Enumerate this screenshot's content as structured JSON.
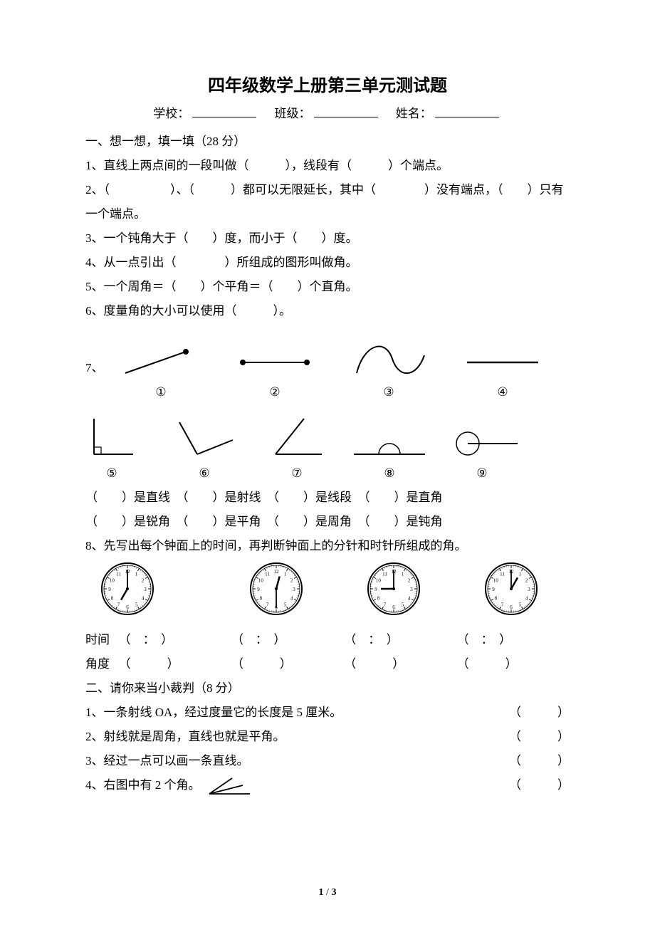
{
  "title": "四年级数学上册第三单元测试题",
  "header": {
    "school_label": "学校：",
    "class_label": "班级：",
    "name_label": "姓名："
  },
  "section1": {
    "heading": "一、想一想，填一填（28 分）",
    "q1": "1、直线上两点间的一段叫做（　　　），线段有（　　　）个端点。",
    "q2": "2、（　　　　　）、（　　　）都可以无限延长，其中（　　　　）没有端点，（　　）只有一个端点。",
    "q3": "3、一个钝角大于（　　）度，而小于（　　）度。",
    "q4": "4、从一点引出（　　　　）所组成的图形叫做角。",
    "q5": "5、一个周角＝（　　）个平角＝（　　）个直角。",
    "q6": "6、度量角的大小可以使用（　　　）。",
    "q7_num": "7、",
    "fig_labels_row1": [
      "①",
      "②",
      "③",
      "④"
    ],
    "fig_labels_row2": [
      "⑤",
      "⑥",
      "⑦",
      "⑧",
      "⑨"
    ],
    "classify1": "（　　）是直线　（　　）是射线　（　　）是线段　（　　）是直角",
    "classify2": "（　　）是锐角　（　　）是平角　（　　）是周角　（　　）是钝角",
    "q8": "8、先写出每个钟面上的时间，再判断钟面上的分针和时针所组成的角。",
    "clocks": [
      {
        "hour": 7,
        "minute": 0
      },
      {
        "hour": 12,
        "minute": 30
      },
      {
        "hour": 9,
        "minute": 0
      },
      {
        "hour": 1,
        "minute": 0
      }
    ],
    "time_label": "时间",
    "angle_label": "角度",
    "time_paren": "（　：　）",
    "angle_paren": "（　　　）"
  },
  "section2": {
    "heading": "二、请你来当小裁判（8 分）",
    "items": [
      "1、一条射线 OA，经过度量它的长度是 5 厘米。",
      "2、射线就是周角，直线也就是平角。",
      "3、经过一点可以画一条直线。",
      "4、右图中有 2 个角。"
    ],
    "paren": "（　　　）"
  },
  "footer": {
    "page_current": "1",
    "page_sep": " / ",
    "page_total": "3"
  },
  "style": {
    "stroke": "#000000",
    "clock_size": 78,
    "clock_spacing": [
      0,
      160,
      340,
      500
    ],
    "row2_cell_width": 130
  }
}
